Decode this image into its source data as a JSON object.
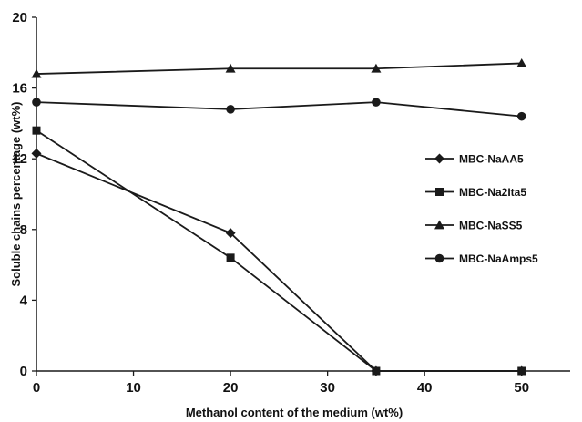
{
  "chart_data": {
    "type": "line",
    "title": "",
    "xlabel": "Methanol content of the medium (wt%)",
    "ylabel": "Soluble chains percentage (wt%)",
    "xlim": [
      0,
      55
    ],
    "ylim": [
      0,
      20
    ],
    "xticks": [
      0,
      10,
      20,
      30,
      40,
      50
    ],
    "yticks": [
      0,
      4,
      8,
      12,
      16,
      20
    ],
    "grid": false,
    "legend_position": "right",
    "line_color": "#1a1a1a",
    "series": [
      {
        "name": "MBC-NaAA5",
        "marker": "diamond",
        "x": [
          0,
          20,
          35,
          50
        ],
        "y": [
          12.3,
          7.8,
          0,
          0
        ]
      },
      {
        "name": "MBC-Na2Ita5",
        "marker": "square",
        "x": [
          0,
          20,
          35,
          50
        ],
        "y": [
          13.6,
          6.4,
          0,
          0
        ]
      },
      {
        "name": "MBC-NaSS5",
        "marker": "triangle",
        "x": [
          0,
          20,
          35,
          50
        ],
        "y": [
          16.8,
          17.1,
          17.1,
          17.4
        ]
      },
      {
        "name": "MBC-NaAmps5",
        "marker": "circle",
        "x": [
          0,
          20,
          35,
          50
        ],
        "y": [
          15.2,
          14.8,
          15.2,
          14.4
        ]
      }
    ]
  }
}
